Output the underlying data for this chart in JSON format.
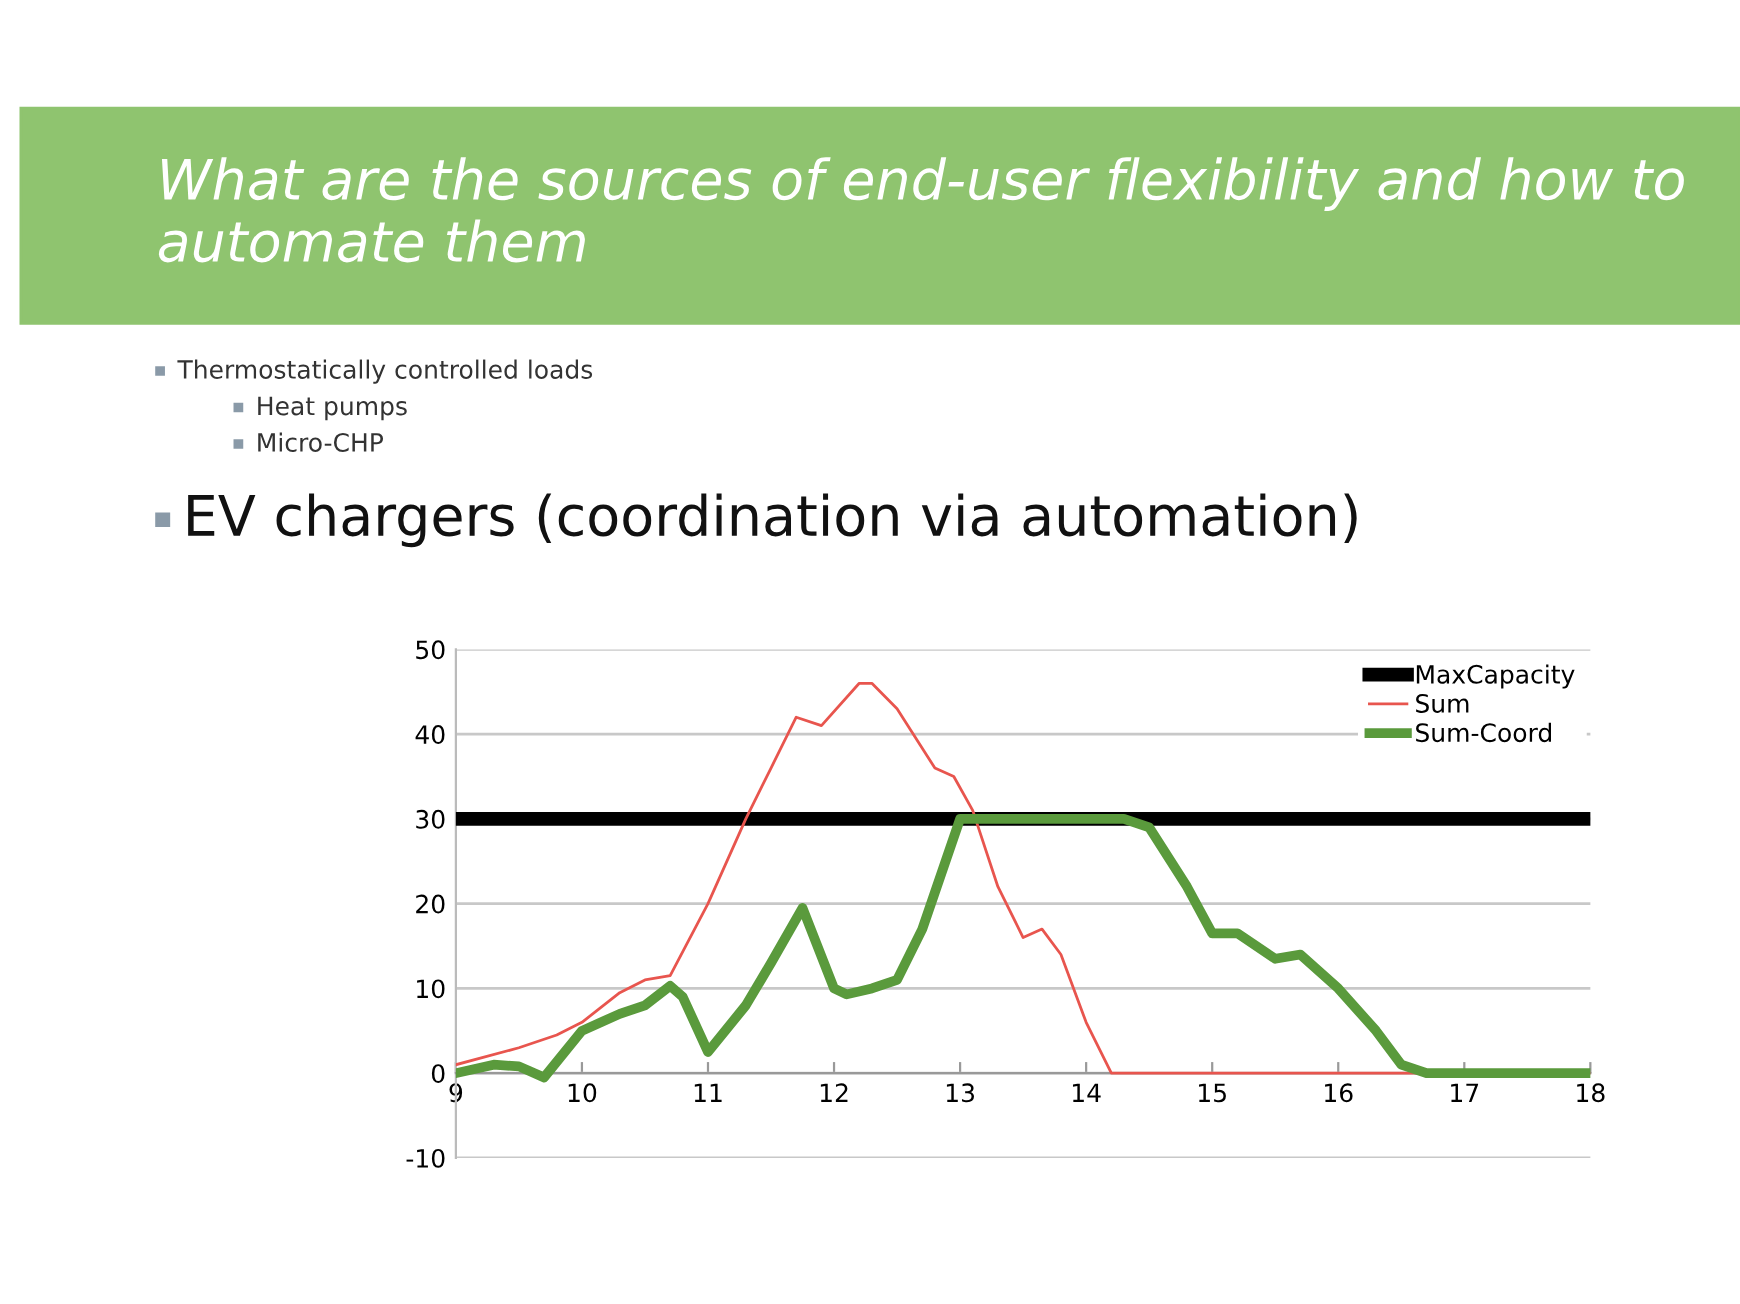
{
  "chart_data": {
    "type": "line",
    "title": "What are the sources of end-user flexibility and how to automate them",
    "subtitle": "EV chargers (coordination via automation)",
    "annotations": [
      "Thermostatically controlled loads",
      "Heat pumps",
      "Micro-CHP"
    ],
    "series": [
      {
        "name": "MaxCapacity",
        "color": "#000000",
        "x": [
          9,
          18
        ],
        "values": [
          30,
          30
        ]
      },
      {
        "name": "Sum",
        "color": "#e8554e",
        "x": [
          9,
          9.5,
          9.8,
          10,
          10.3,
          10.5,
          10.7,
          11,
          11.3,
          11.5,
          11.7,
          11.9,
          12.2,
          12.3,
          12.5,
          12.8,
          12.95,
          13.1,
          13.3,
          13.5,
          13.65,
          13.8,
          14,
          14.2,
          14.4,
          18
        ],
        "values": [
          1,
          3,
          4.5,
          6,
          9.5,
          11,
          11.5,
          20,
          30,
          36,
          42,
          41,
          46,
          46,
          43,
          36,
          35,
          31,
          22,
          16,
          17,
          14,
          6,
          0,
          0,
          0
        ]
      },
      {
        "name": "Sum-Coord",
        "color": "#5a9a3c",
        "x": [
          9,
          9.3,
          9.5,
          9.7,
          10,
          10.3,
          10.5,
          10.7,
          10.8,
          11,
          11.3,
          11.5,
          11.75,
          12,
          12.1,
          12.3,
          12.5,
          12.7,
          13,
          13.5,
          14,
          14.3,
          14.5,
          14.8,
          15,
          15.2,
          15.5,
          15.7,
          16,
          16.3,
          16.5,
          16.7,
          18
        ],
        "values": [
          0,
          1,
          0.8,
          -0.5,
          5,
          7,
          8,
          10.3,
          9,
          2.5,
          8,
          13,
          19.5,
          10,
          9.3,
          10,
          11,
          17,
          30,
          30,
          30,
          30,
          29,
          22,
          16.5,
          16.5,
          13.5,
          14,
          10,
          5,
          1,
          0,
          0
        ]
      }
    ],
    "xlim": [
      9,
      18
    ],
    "xticks": [
      9,
      10,
      11,
      12,
      13,
      14,
      15,
      16,
      17,
      18
    ],
    "ylim": [
      -10,
      50
    ],
    "yticks": [
      -10,
      0,
      10,
      20,
      30,
      40,
      50
    ],
    "grid": "y",
    "legend": "top right",
    "marker": "none",
    "line_style": "solid"
  }
}
